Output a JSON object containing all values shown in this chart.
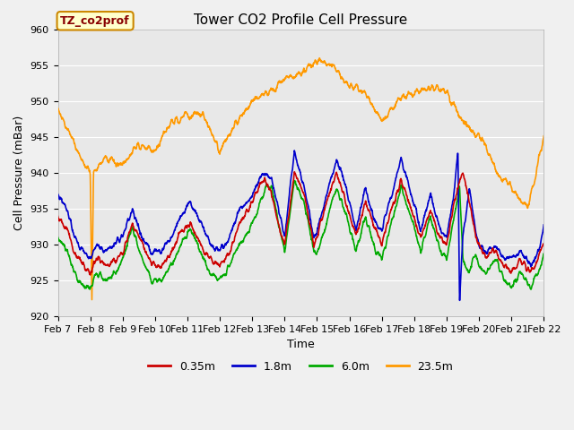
{
  "title": "Tower CO2 Profile Cell Pressure",
  "xlabel": "Time",
  "ylabel": "Cell Pressure (mBar)",
  "ylim": [
    920,
    960
  ],
  "date_labels": [
    "Feb 7",
    "Feb 8",
    "Feb 9",
    "Feb 10",
    "Feb 11",
    "Feb 12",
    "Feb 13",
    "Feb 14",
    "Feb 15",
    "Feb 16",
    "Feb 17",
    "Feb 18",
    "Feb 19",
    "Feb 20",
    "Feb 21",
    "Feb 22"
  ],
  "legend_labels": [
    "0.35m",
    "1.8m",
    "6.0m",
    "23.5m"
  ],
  "legend_colors": [
    "#cc0000",
    "#0000cc",
    "#00aa00",
    "#ff9900"
  ],
  "series_colors": [
    "#cc0000",
    "#0000cc",
    "#00aa00",
    "#ff9900"
  ],
  "annotation_text": "TZ_co2prof",
  "annotation_bg": "#ffffcc",
  "annotation_edgecolor": "#cc8800",
  "plot_bg": "#e8e8e8",
  "grid_color": "#ffffff",
  "title_fontsize": 11,
  "axis_label_fontsize": 9,
  "tick_fontsize": 8,
  "legend_fontsize": 9,
  "annotation_fontsize": 9
}
